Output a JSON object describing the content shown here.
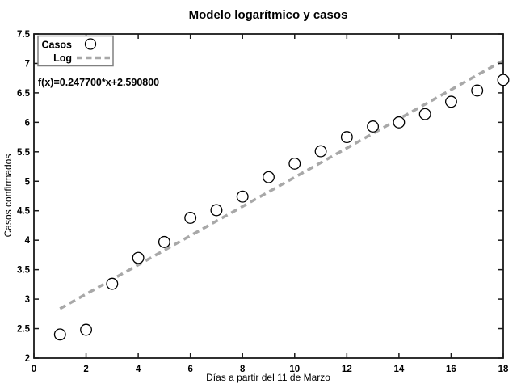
{
  "chart_data": {
    "type": "scatter",
    "title": "Modelo logarítmico y casos",
    "xlabel": "Días a partir del 11 de Marzo",
    "ylabel": "Casos confirmados",
    "xlim": [
      0,
      18
    ],
    "ylim": [
      2,
      7.5
    ],
    "xticks": [
      0,
      2,
      4,
      6,
      8,
      10,
      12,
      14,
      16,
      18
    ],
    "yticks": [
      2,
      2.5,
      3,
      3.5,
      4,
      4.5,
      5,
      5.5,
      6,
      6.5,
      7,
      7.5
    ],
    "grid": false,
    "legend_position": "top-left",
    "annotation": "f(x)=0.247700*x+2.590800",
    "series": [
      {
        "name": "Casos",
        "type": "scatter",
        "marker": "circle",
        "marker_color": "#000000",
        "marker_fill": "#ffffff",
        "x": [
          1,
          2,
          3,
          4,
          5,
          6,
          7,
          8,
          9,
          10,
          11,
          12,
          13,
          14,
          15,
          16,
          17,
          18
        ],
        "y": [
          2.4,
          2.48,
          3.26,
          3.7,
          3.97,
          4.38,
          4.51,
          4.74,
          5.07,
          5.3,
          5.51,
          5.75,
          5.93,
          6.0,
          6.14,
          6.35,
          6.54,
          6.72
        ]
      },
      {
        "name": "Log",
        "type": "line",
        "line_style": "dashed",
        "color": "#a8a8a8",
        "slope": 0.2477,
        "intercept": 2.5908,
        "x_range": [
          1,
          18
        ]
      }
    ]
  },
  "colors": {
    "axis": "#1a1a1a",
    "legend_border": "#808080",
    "background": "#ffffff"
  }
}
